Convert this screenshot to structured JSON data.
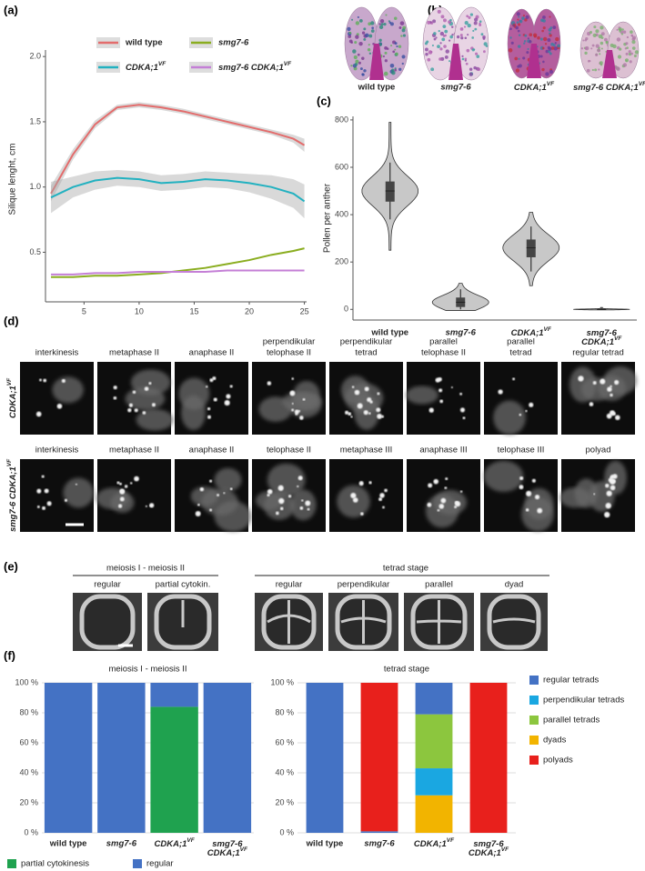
{
  "panel_labels": [
    "(a)",
    "(b)",
    "(c)",
    "(d)",
    "(e)",
    "(f)"
  ],
  "chart_data": [
    {
      "type": "line",
      "y_label": "Silique lenght, cm",
      "x": [
        2,
        4,
        6,
        8,
        10,
        12,
        14,
        16,
        18,
        20,
        22,
        24,
        25
      ],
      "xlim": [
        1.5,
        25.2
      ],
      "xticks": [
        5,
        10,
        15,
        20,
        25
      ],
      "ylim": [
        0.12,
        2.05
      ],
      "yticks": [
        0.5,
        {
          "value": 1,
          "label": "1.0"
        },
        1.5,
        {
          "value": 2,
          "label": "2.0"
        }
      ],
      "series": [
        {
          "name": "wild type",
          "color": "#e36c6c",
          "values": [
            0.95,
            1.25,
            1.48,
            1.61,
            1.63,
            1.61,
            1.58,
            1.54,
            1.5,
            1.46,
            1.42,
            1.37,
            1.32
          ],
          "lower": [
            0.89,
            1.21,
            1.45,
            1.59,
            1.61,
            1.59,
            1.56,
            1.52,
            1.48,
            1.44,
            1.4,
            1.34,
            1.27
          ],
          "upper": [
            1.01,
            1.29,
            1.51,
            1.63,
            1.65,
            1.63,
            1.6,
            1.56,
            1.52,
            1.48,
            1.44,
            1.4,
            1.37
          ]
        },
        {
          "name": {
            "lines": [
              "CDKA;1"
            ],
            "sup": "VF"
          },
          "color": "#22b1c0",
          "values": [
            0.92,
            1.0,
            1.05,
            1.07,
            1.06,
            1.03,
            1.04,
            1.06,
            1.05,
            1.03,
            1.0,
            0.95,
            0.89
          ],
          "lower": [
            0.8,
            0.92,
            0.98,
            1.01,
            1.0,
            0.97,
            0.98,
            1.0,
            0.99,
            0.96,
            0.91,
            0.84,
            0.76
          ],
          "upper": [
            1.04,
            1.08,
            1.12,
            1.13,
            1.12,
            1.09,
            1.1,
            1.12,
            1.11,
            1.1,
            1.09,
            1.06,
            1.02
          ]
        },
        {
          "name": "smg7-6",
          "color": "#8aad1f",
          "values": [
            0.31,
            0.31,
            0.32,
            0.32,
            0.33,
            0.34,
            0.36,
            0.38,
            0.41,
            0.44,
            0.48,
            0.51,
            0.53
          ]
        },
        {
          "name": {
            "lines": [
              "smg7-6 CDKA;1"
            ],
            "sup": "VF"
          },
          "color": "#c47fd6",
          "values": [
            0.33,
            0.33,
            0.34,
            0.34,
            0.35,
            0.35,
            0.35,
            0.35,
            0.36,
            0.36,
            0.36,
            0.36,
            0.36
          ]
        }
      ]
    },
    {
      "type": "violin",
      "y_label": "Pollen per anther",
      "color": "#c8c8c8",
      "categories": [
        "wild type",
        "smg7-6",
        {
          "lines": [
            "CDKA;1"
          ],
          "sup": "VF"
        },
        {
          "lines": [
            "smg7-6",
            "CDKA;1"
          ],
          "sup": "VF"
        }
      ],
      "ylim": [
        -45,
        815
      ],
      "yticks": [
        0,
        200,
        400,
        600,
        800
      ],
      "stats": [
        {
          "min": 250,
          "whisker_low": 380,
          "q1": 455,
          "median": 500,
          "q3": 540,
          "whisker_high": 620,
          "max": 790
        },
        {
          "min": -5,
          "whisker_low": 0,
          "q1": 10,
          "median": 30,
          "q3": 50,
          "whisker_high": 85,
          "max": 110
        },
        {
          "min": 100,
          "whisker_low": 160,
          "q1": 220,
          "median": 260,
          "q3": 295,
          "whisker_high": 350,
          "max": 410
        },
        {
          "min": -2,
          "whisker_low": 0,
          "q1": 0,
          "median": 0,
          "q3": 2,
          "whisker_high": 5,
          "max": 8
        }
      ]
    },
    {
      "type": "stacked_bar",
      "title": "meiosis I - meiosis II",
      "categories": [
        "wild type",
        "smg7-6",
        {
          "lines": [
            "CDKA;1"
          ],
          "sup": "VF"
        },
        {
          "lines": [
            "smg7-6",
            "CDKA;1"
          ],
          "sup": "VF"
        }
      ],
      "ylim": [
        0,
        100
      ],
      "yticks": [
        {
          "value": 0,
          "label": "0 %"
        },
        {
          "value": 20,
          "label": "20 %"
        },
        {
          "value": 40,
          "label": "40 %"
        },
        {
          "value": 60,
          "label": "60 %"
        },
        {
          "value": 80,
          "label": "80 %"
        },
        {
          "value": 100,
          "label": "100 %"
        }
      ],
      "grid": true,
      "legend": "bottom",
      "series": [
        {
          "name": "partial cytokinesis",
          "color": "#1fa24f",
          "values": [
            0,
            0,
            84,
            0
          ]
        },
        {
          "name": "regular",
          "color": "#4472c4",
          "values": [
            100,
            100,
            16,
            100
          ]
        }
      ],
      "stack_order": [
        0,
        1
      ]
    },
    {
      "type": "stacked_bar",
      "title": "tetrad stage",
      "categories": [
        "wild type",
        "smg7-6",
        {
          "lines": [
            "CDKA;1"
          ],
          "sup": "VF"
        },
        {
          "lines": [
            "smg7-6",
            "CDKA;1"
          ],
          "sup": "VF"
        }
      ],
      "ylim": [
        0,
        100
      ],
      "yticks": [
        {
          "value": 0,
          "label": "0 %"
        },
        {
          "value": 20,
          "label": "20 %"
        },
        {
          "value": 40,
          "label": "40 %"
        },
        {
          "value": 60,
          "label": "60 %"
        },
        {
          "value": 80,
          "label": "80 %"
        },
        {
          "value": 100,
          "label": "100 %"
        }
      ],
      "grid": true,
      "legend": "right",
      "series": [
        {
          "name": "regular tetrads",
          "color": "#4472c4",
          "values": [
            100,
            1,
            21,
            0
          ]
        },
        {
          "name": "perpendikular tetrads",
          "color": "#1aa7e1",
          "values": [
            0,
            0,
            18,
            0
          ]
        },
        {
          "name": "parallel tetrads",
          "color": "#8cc63e",
          "values": [
            0,
            0,
            36,
            0
          ]
        },
        {
          "name": "dyads",
          "color": "#f2b400",
          "values": [
            0,
            0,
            25,
            0
          ]
        },
        {
          "name": "polyads",
          "color": "#e8201c",
          "values": [
            0,
            99,
            0,
            100
          ]
        }
      ],
      "stack_order": [
        3,
        1,
        2,
        0,
        4
      ]
    }
  ],
  "anthers": {
    "labels": [
      "wild type",
      "smg7-6",
      {
        "lines": [
          "CDKA;1"
        ],
        "sup": "VF"
      },
      {
        "lines": [
          "smg7-6 CDKA;1"
        ],
        "sup": "VF"
      }
    ]
  },
  "micrographs": {
    "rows": [
      {
        "label": {
          "lines": [
            "CDKA;1"
          ],
          "sup": "VF"
        },
        "cells": [
          [
            "interkinesis"
          ],
          [
            "metaphase II"
          ],
          [
            "anaphase II"
          ],
          [
            "perpendikular",
            "telophase II"
          ],
          [
            "perpendikular",
            "tetrad"
          ],
          [
            "parallel",
            "telophase II"
          ],
          [
            "parallel",
            "tetrad"
          ],
          [
            "regular tetrad"
          ]
        ]
      },
      {
        "label": {
          "lines": [
            "smg7-6 CDKA;1"
          ],
          "sup": "VF"
        },
        "cells": [
          [
            "interkinesis"
          ],
          [
            "metaphase II"
          ],
          [
            "anaphase II"
          ],
          [
            "telophase II"
          ],
          [
            "metaphase III"
          ],
          [
            "anaphase III"
          ],
          [
            "telophase III"
          ],
          [
            "polyad"
          ]
        ]
      }
    ]
  },
  "cytokinesis": {
    "groups": [
      {
        "title": "meiosis I - meiosis II",
        "cells": [
          "regular",
          "partial cytokin."
        ]
      },
      {
        "title": "tetrad stage",
        "cells": [
          "regular",
          "perpendikular",
          "parallel",
          "dyad"
        ]
      }
    ]
  }
}
